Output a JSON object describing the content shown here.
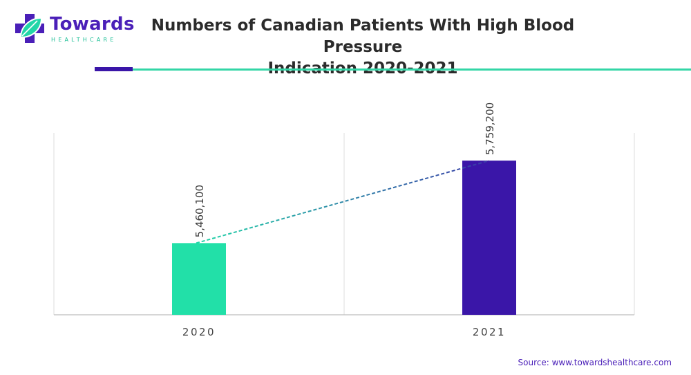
{
  "logo": {
    "word": "Towards",
    "sub": "HEALTHCARE",
    "colors": {
      "purple": "#4a1fb8",
      "teal": "#1bbf95"
    }
  },
  "header": {
    "title_line1": "Numbers of Canadian Patients With High Blood Pressure",
    "title_line2": "Indication 2020-2021"
  },
  "chart_data": {
    "type": "bar",
    "categories": [
      "2020",
      "2021"
    ],
    "values": [
      5460100,
      5759200
    ],
    "data_labels": [
      "5,460,100",
      "5,759,200"
    ],
    "colors": [
      "#22e0a8",
      "#3a16a8"
    ],
    "trend_line": {
      "style": "dashed",
      "from_color": "#22d6a8",
      "to_color": "#3a3aa8"
    },
    "ylim": [
      5200000,
      5860000
    ],
    "grid": "vertical",
    "legend": "none"
  },
  "footer": {
    "source_label": "Source:",
    "source_url": "www.towardshealthcare.com"
  }
}
